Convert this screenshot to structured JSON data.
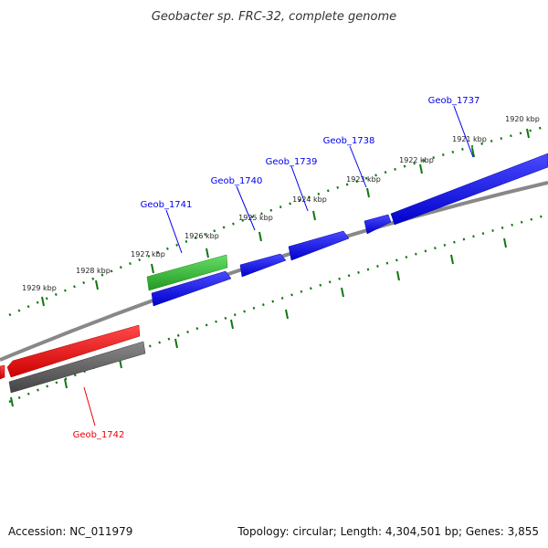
{
  "title": "Geobacter sp. FRC-32, complete genome",
  "footer": {
    "accession": "Accession: NC_011979",
    "summary": "Topology: circular; Length: 4,304,501 bp; Genes: 3,855"
  },
  "ticks": [
    "1920 kbp",
    "1921 kbp",
    "1922 kbp",
    "1923 kbp",
    "1924 kbp",
    "1925 kbp",
    "1926 kbp",
    "1927 kbp",
    "1928 kbp",
    "1929 kbp"
  ],
  "gene_labels": [
    "Geob_1737",
    "Geob_1738",
    "Geob_1739",
    "Geob_1740",
    "Geob_1741",
    "Geob_1742"
  ],
  "colors": {
    "forward": "#0000ee",
    "reverse": "#ee0000",
    "rna": "#33bb33",
    "pseudo": "#666666",
    "backbone": "#888888",
    "scale": "#117711"
  }
}
